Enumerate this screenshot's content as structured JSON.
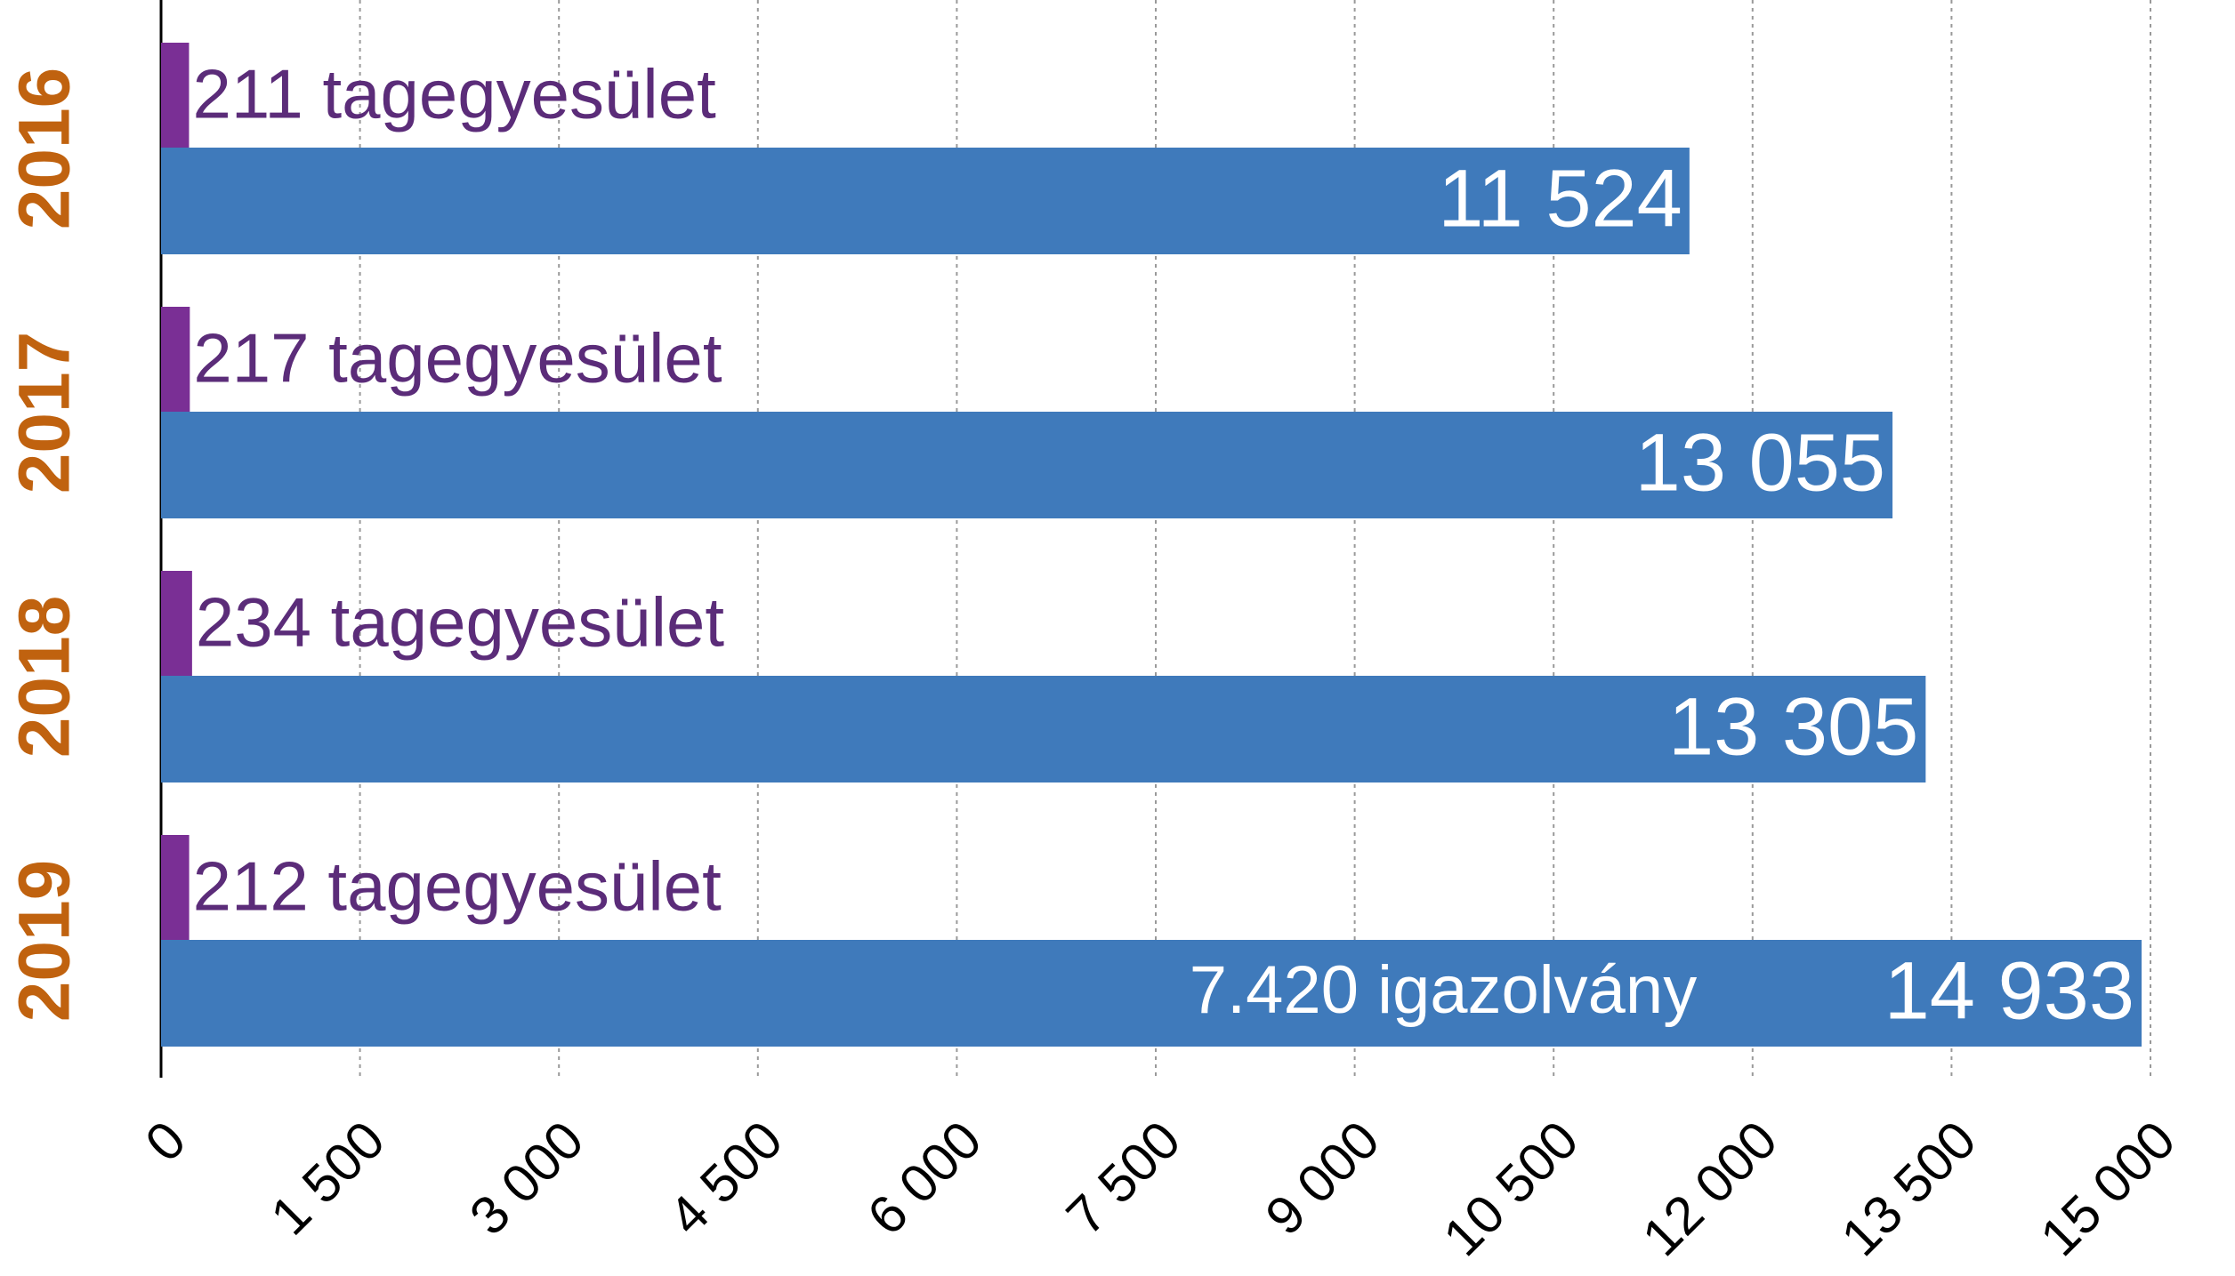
{
  "chart_data": {
    "type": "bar",
    "orientation": "horizontal",
    "categories": [
      "2016",
      "2017",
      "2018",
      "2019"
    ],
    "series": [
      {
        "name": "tagegyesület",
        "color": "#7a2f95",
        "values": [
          211,
          217,
          234,
          212
        ],
        "value_labels": [
          "211 tagegyesület",
          "217 tagegyesület",
          "234 tagegyesület",
          "212 tagegyesület"
        ]
      },
      {
        "name": "igazolvány",
        "color": "#3f7abb",
        "values": [
          11524,
          13055,
          13305,
          14933
        ],
        "value_labels": [
          "11 524",
          "13 055",
          "13 305",
          "14 933"
        ]
      }
    ],
    "annotation": "7.420 igazolvány",
    "xlim": [
      0,
      15000
    ],
    "xticks": [
      0,
      {
        "value": 1500,
        "label": "1 500"
      },
      {
        "value": 3000,
        "label": "3 000"
      },
      {
        "value": 4500,
        "label": "4 500"
      },
      {
        "value": 6000,
        "label": "6 000"
      },
      {
        "value": 7500,
        "label": "7 500"
      },
      {
        "value": 9000,
        "label": "9 000"
      },
      {
        "value": 10500,
        "label": "10 500"
      },
      {
        "value": 12000,
        "label": "12 000"
      },
      {
        "value": 13500,
        "label": "13 500"
      },
      {
        "value": 15000,
        "label": "15 000"
      }
    ],
    "grid": true
  }
}
